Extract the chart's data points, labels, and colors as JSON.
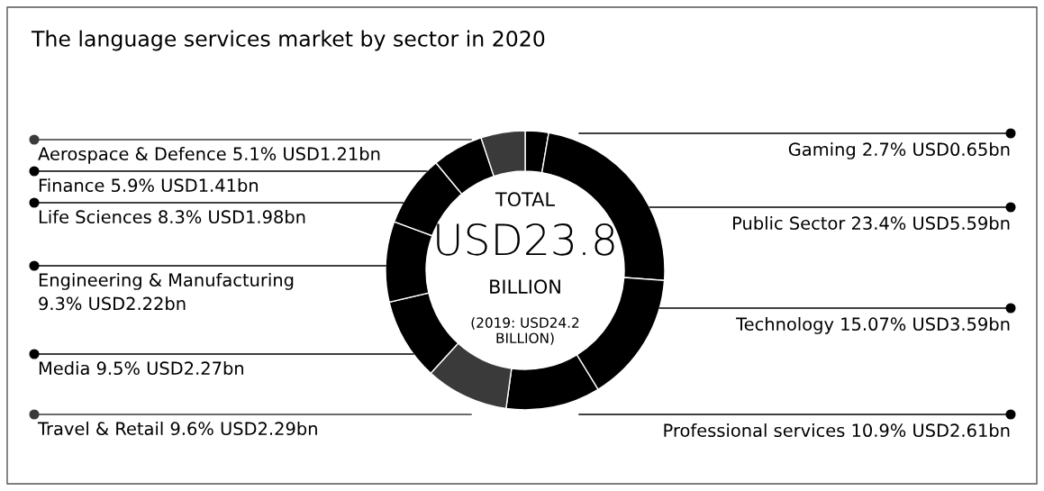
{
  "chart_data": {
    "type": "donut",
    "title": "The language services market by sector in 2020",
    "categories": [
      "Gaming",
      "Public Sector",
      "Technology",
      "Professional services",
      "Travel & Retail",
      "Media",
      "Engineering & Manufacturing",
      "Life Sciences",
      "Finance",
      "Aerospace & Defence"
    ],
    "values": [
      2.7,
      23.4,
      15.07,
      10.9,
      9.6,
      9.5,
      9.3,
      8.3,
      5.9,
      5.1
    ],
    "value_labels": [
      "2.7% USD0.65bn",
      "23.4% USD5.59bn",
      "15.07% USD3.59bn",
      "10.9% USD2.61bn",
      "9.6% USD2.29bn",
      "9.5% USD2.27bn",
      "9.3% USD2.22bn",
      "8.3% USD1.98bn",
      "5.9% USD1.41bn",
      "5.1% USD1.21bn"
    ],
    "colors": [
      "#000000",
      "#000000",
      "#000000",
      "#000000",
      "#3a3a3a",
      "#000000",
      "#000000",
      "#000000",
      "#000000",
      "#3a3a3a"
    ],
    "legend": "left",
    "annotations": [
      "TOTAL",
      "USD23.8",
      "BILLION",
      "(2019: USD24.2 BILLION)"
    ]
  }
}
